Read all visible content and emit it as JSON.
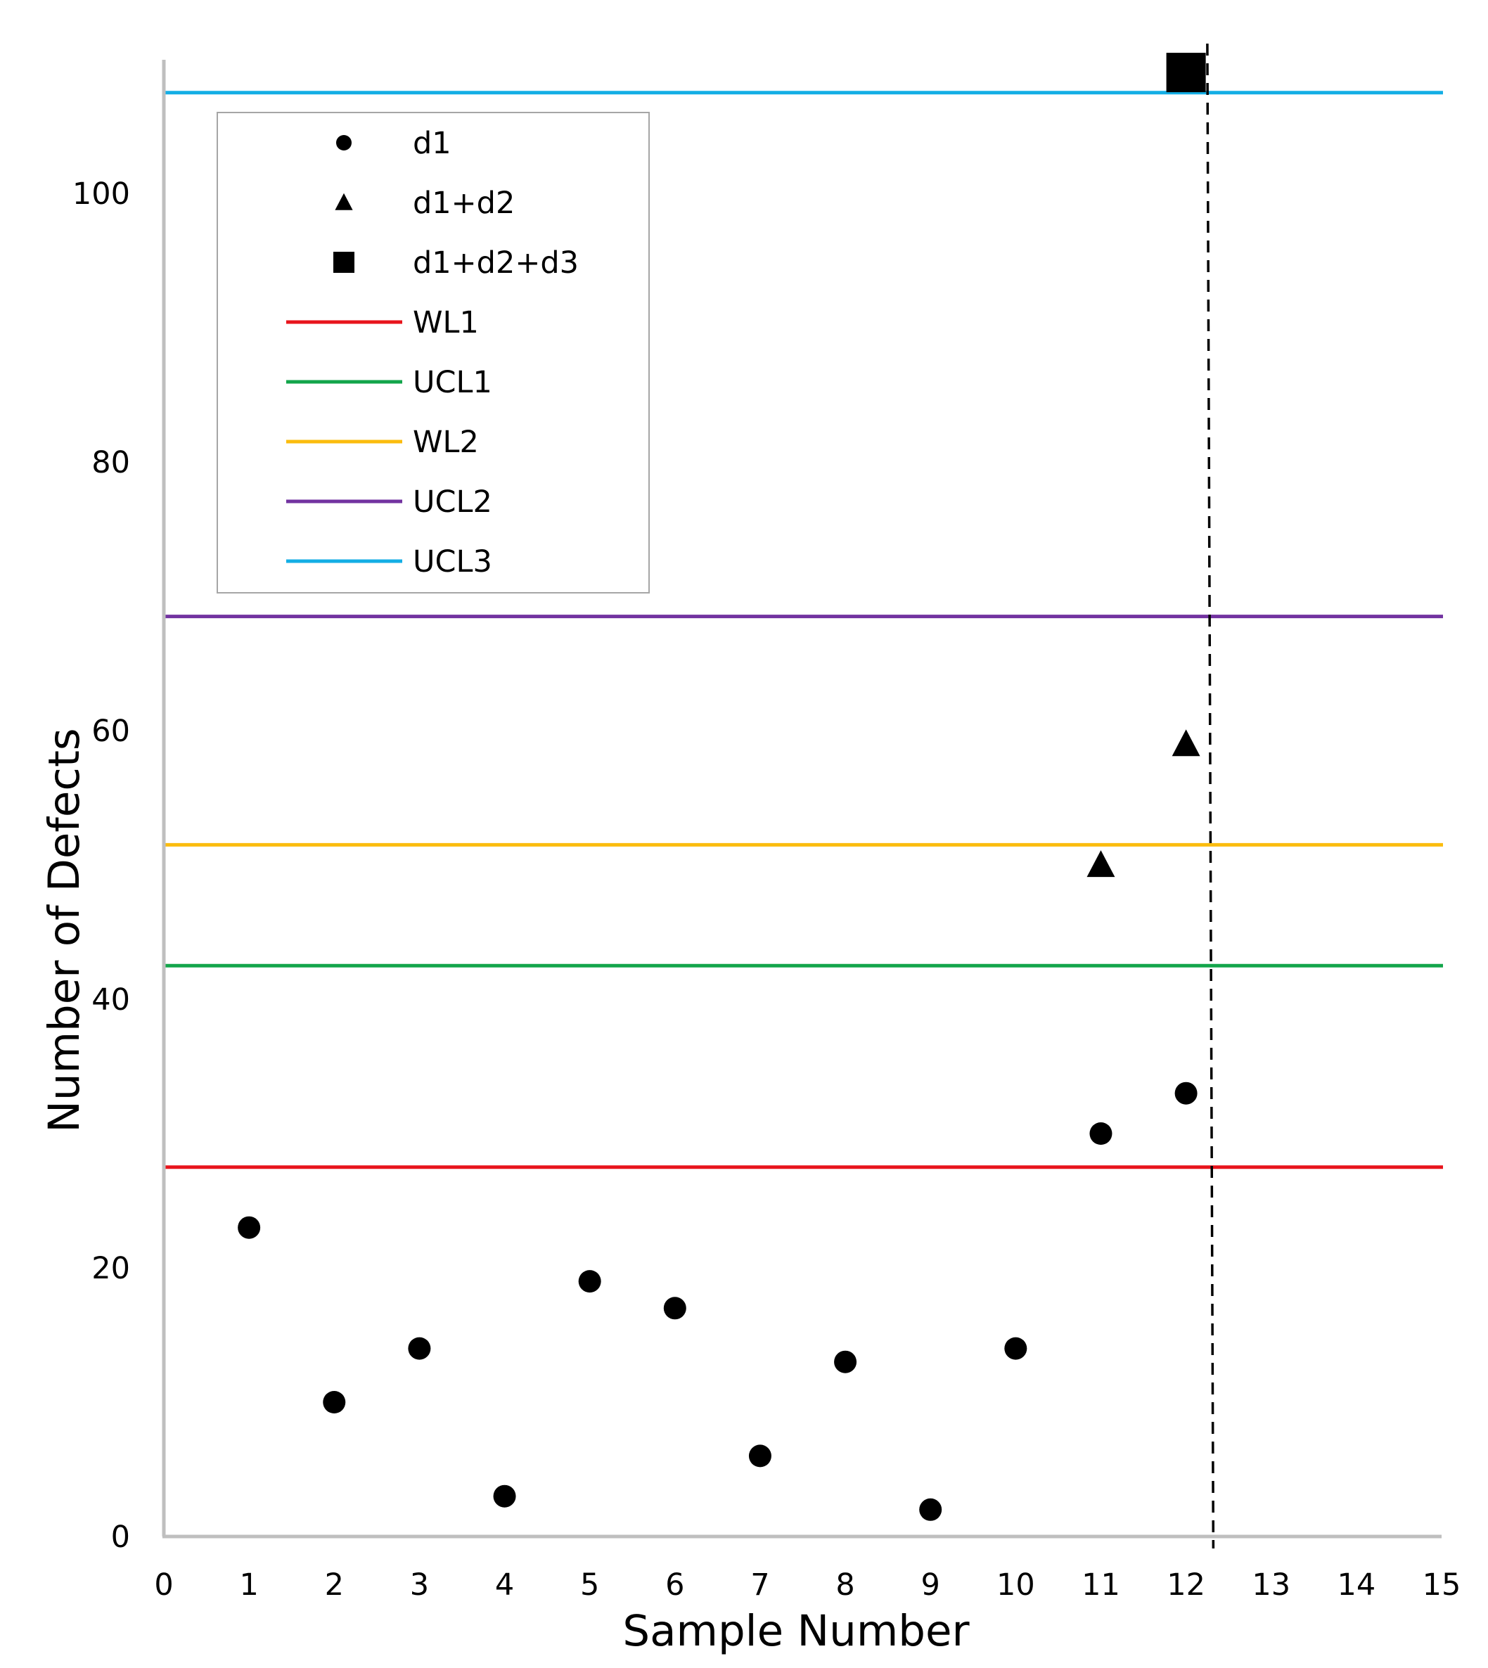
{
  "chart_data": {
    "type": "scatter",
    "title": "",
    "xlabel": "Sample Number",
    "ylabel": "Number of Defects",
    "xlim": [
      0,
      15
    ],
    "ylim": [
      0,
      110
    ],
    "xticks": [
      0,
      1,
      2,
      3,
      4,
      5,
      6,
      7,
      8,
      9,
      10,
      11,
      12,
      13,
      14,
      15
    ],
    "yticks": [
      0,
      20,
      40,
      60,
      80,
      100
    ],
    "grid": false,
    "legend_position": "top-left",
    "series": [
      {
        "name": "d1",
        "marker": "circle",
        "color": "#000000",
        "points": [
          [
            1,
            23
          ],
          [
            2,
            10
          ],
          [
            3,
            14
          ],
          [
            4,
            3
          ],
          [
            5,
            19
          ],
          [
            6,
            17
          ],
          [
            7,
            6
          ],
          [
            8,
            13
          ],
          [
            9,
            2
          ],
          [
            10,
            14
          ],
          [
            11,
            30
          ],
          [
            12,
            33
          ]
        ]
      },
      {
        "name": "d1+d2",
        "marker": "triangle",
        "color": "#000000",
        "points": [
          [
            11,
            50
          ],
          [
            12,
            59
          ]
        ]
      },
      {
        "name": "d1+d2+d3",
        "marker": "square",
        "color": "#000000",
        "points": [
          [
            12,
            109
          ]
        ]
      }
    ],
    "reference_lines": [
      {
        "name": "WL1",
        "y": 27.5,
        "color": "#e8141c"
      },
      {
        "name": "UCL1",
        "y": 42.5,
        "color": "#13a54b"
      },
      {
        "name": "WL2",
        "y": 51.5,
        "color": "#fbbc0e"
      },
      {
        "name": "UCL2",
        "y": 68.5,
        "color": "#7232a0"
      },
      {
        "name": "UCL3",
        "y": 107.5,
        "color": "#14aee5"
      }
    ],
    "vertical_line": {
      "x_top": 12.25,
      "x_bottom": 12.32,
      "style": "dashed",
      "color": "#000000"
    }
  }
}
